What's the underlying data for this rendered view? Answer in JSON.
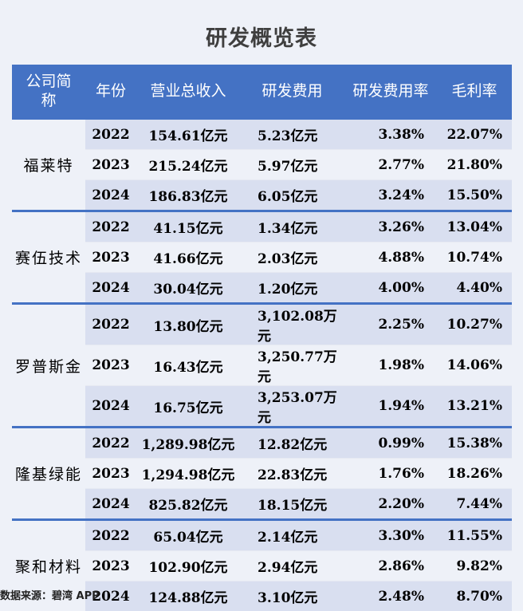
{
  "title": "研发概览表",
  "headers": [
    "公司简称",
    "年份",
    "营业总收入",
    "研发费用",
    "研发费用率",
    "毛利率"
  ],
  "companies": [
    {
      "name": "福莱特",
      "rows": [
        {
          "year": "2022",
          "revenue": "154.61亿元",
          "rd": "5.23亿元",
          "rd_rate": "3.38%",
          "gross_margin": "22.07%"
        },
        {
          "year": "2023",
          "revenue": "215.24亿元",
          "rd": "5.97亿元",
          "rd_rate": "2.77%",
          "gross_margin": "21.80%"
        },
        {
          "year": "2024",
          "revenue": "186.83亿元",
          "rd": "6.05亿元",
          "rd_rate": "3.24%",
          "gross_margin": "15.50%"
        }
      ]
    },
    {
      "name": "赛伍技术",
      "rows": [
        {
          "year": "2022",
          "revenue": "41.15亿元",
          "rd": "1.34亿元",
          "rd_rate": "3.26%",
          "gross_margin": "13.04%"
        },
        {
          "year": "2023",
          "revenue": "41.66亿元",
          "rd": "2.03亿元",
          "rd_rate": "4.88%",
          "gross_margin": "10.74%"
        },
        {
          "year": "2024",
          "revenue": "30.04亿元",
          "rd": "1.20亿元",
          "rd_rate": "4.00%",
          "gross_margin": "4.40%"
        }
      ]
    },
    {
      "name": "罗普斯金",
      "rows": [
        {
          "year": "2022",
          "revenue": "13.80亿元",
          "rd": "3,102.08万元",
          "rd_rate": "2.25%",
          "gross_margin": "10.27%"
        },
        {
          "year": "2023",
          "revenue": "16.43亿元",
          "rd": "3,250.77万元",
          "rd_rate": "1.98%",
          "gross_margin": "14.06%"
        },
        {
          "year": "2024",
          "revenue": "16.75亿元",
          "rd": "3,253.07万元",
          "rd_rate": "1.94%",
          "gross_margin": "13.21%"
        }
      ]
    },
    {
      "name": "隆基绿能",
      "rows": [
        {
          "year": "2022",
          "revenue": "1,289.98亿元",
          "rd": "12.82亿元",
          "rd_rate": "0.99%",
          "gross_margin": "15.38%"
        },
        {
          "year": "2023",
          "revenue": "1,294.98亿元",
          "rd": "22.83亿元",
          "rd_rate": "1.76%",
          "gross_margin": "18.26%"
        },
        {
          "year": "2024",
          "revenue": "825.82亿元",
          "rd": "18.15亿元",
          "rd_rate": "2.20%",
          "gross_margin": "7.44%"
        }
      ]
    },
    {
      "name": "聚和材料",
      "rows": [
        {
          "year": "2022",
          "revenue": "65.04亿元",
          "rd": "2.14亿元",
          "rd_rate": "3.30%",
          "gross_margin": "11.55%"
        },
        {
          "year": "2023",
          "revenue": "102.90亿元",
          "rd": "2.94亿元",
          "rd_rate": "2.86%",
          "gross_margin": "9.82%"
        },
        {
          "year": "2024",
          "revenue": "124.88亿元",
          "rd": "3.10亿元",
          "rd_rate": "2.48%",
          "gross_margin": "8.70%"
        }
      ]
    }
  ],
  "source": "数据来源：碧湾 APP"
}
